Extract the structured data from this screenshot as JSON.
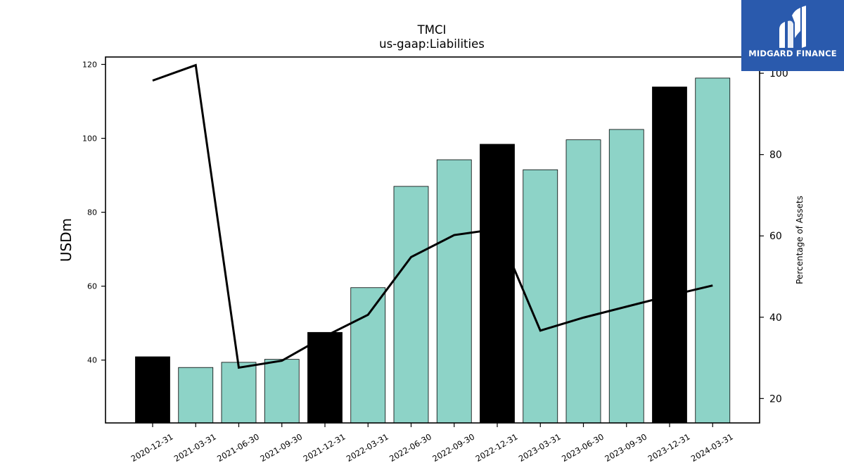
{
  "brand": {
    "name": "MIDGARD FINANCE",
    "bg_color": "#2a5aad",
    "icon": "midgard-logo-mark"
  },
  "chart_data": {
    "type": "bar",
    "title": "TMCI",
    "subtitle": "us-gaap:Liabilities",
    "ylabel": "USDm",
    "y2label": "Percentage of Assets",
    "ylim": [
      23,
      122
    ],
    "y2lim": [
      14,
      104
    ],
    "yticks": [
      40,
      60,
      80,
      100,
      120
    ],
    "y2ticks": [
      20,
      40,
      60,
      80,
      100
    ],
    "categories": [
      "2020-12-31",
      "2021-03-31",
      "2021-06-30",
      "2021-09-30",
      "2021-12-31",
      "2022-03-31",
      "2022-06-30",
      "2022-09-30",
      "2022-12-31",
      "2023-03-31",
      "2023-06-30",
      "2023-09-30",
      "2023-12-31",
      "2024-03-31"
    ],
    "series": [
      {
        "kind": "bar",
        "axis": "left",
        "values": [
          40.9,
          38.0,
          39.4,
          40.2,
          47.5,
          59.6,
          87.0,
          94.2,
          98.4,
          91.5,
          99.6,
          102.4,
          113.9,
          116.3
        ],
        "colors": [
          "#000000",
          "#8dd3c7",
          "#8dd3c7",
          "#8dd3c7",
          "#000000",
          "#8dd3c7",
          "#8dd3c7",
          "#8dd3c7",
          "#000000",
          "#8dd3c7",
          "#8dd3c7",
          "#8dd3c7",
          "#000000",
          "#8dd3c7"
        ]
      },
      {
        "kind": "line",
        "axis": "right",
        "color": "#000000",
        "values": [
          98.2,
          102.0,
          27.6,
          29.3,
          35.3,
          40.6,
          54.8,
          60.2,
          61.7,
          36.7,
          39.9,
          42.6,
          45.3,
          47.8
        ]
      }
    ],
    "colors": {
      "bar_primary": "#8dd3c7",
      "bar_highlight": "#000000",
      "line": "#000000"
    },
    "grid": false,
    "legend": "none"
  }
}
